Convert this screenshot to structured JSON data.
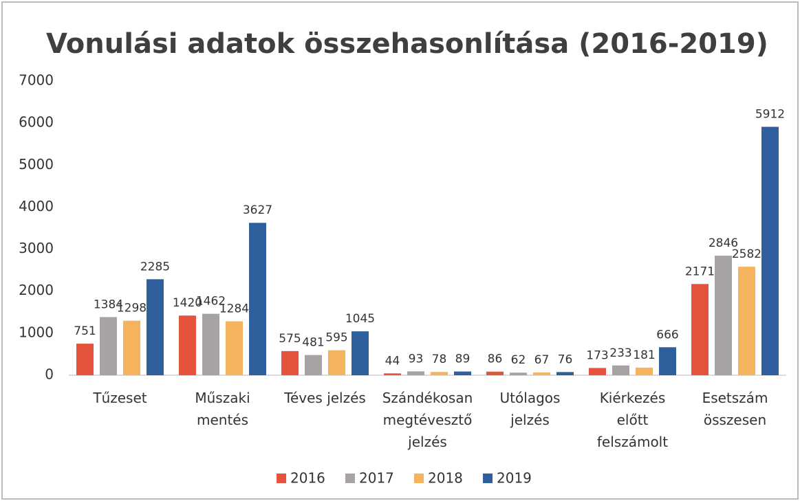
{
  "chart_data": {
    "type": "bar",
    "title": "Vonulási adatok összehasonlítása (2016-2019)",
    "categories": [
      "Tűzeset",
      "Műszaki mentés",
      "Téves jelzés",
      "Szándékosan megtévesztő jelzés",
      "Utólagos jelzés",
      "Kiérkezés előtt felszámolt",
      "Esetszám összesen"
    ],
    "series": [
      {
        "name": "2016",
        "color": "#e5533d",
        "values": [
          751,
          1420,
          575,
          44,
          86,
          173,
          2171
        ]
      },
      {
        "name": "2017",
        "color": "#a8a3a3",
        "values": [
          1384,
          1462,
          481,
          93,
          62,
          233,
          2846
        ]
      },
      {
        "name": "2018",
        "color": "#f6b35e",
        "values": [
          1298,
          1284,
          595,
          78,
          67,
          181,
          2582
        ]
      },
      {
        "name": "2019",
        "color": "#2f5f9c",
        "values": [
          2285,
          3627,
          1045,
          89,
          76,
          666,
          5912
        ]
      }
    ],
    "ylim": [
      0,
      7000
    ],
    "yticks": [
      0,
      1000,
      2000,
      3000,
      4000,
      5000,
      6000,
      7000
    ],
    "grid": false,
    "legend": "bottom"
  }
}
